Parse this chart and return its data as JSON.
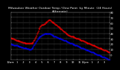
{
  "title": "Milwaukee Weather Outdoor Temp / Dew Point  by Minute  (24 Hours) (Alternate)",
  "bg_color": "#000000",
  "plot_bg_color": "#000000",
  "grid_color": "#666666",
  "temp_color": "#ff0000",
  "dew_color": "#0000ff",
  "temp_values": [
    32,
    31,
    31,
    30,
    30,
    29,
    29,
    28,
    28,
    27,
    27,
    26,
    26,
    25,
    25,
    25,
    24,
    24,
    24,
    23,
    23,
    23,
    23,
    22,
    22,
    22,
    22,
    22,
    21,
    21,
    21,
    21,
    21,
    22,
    22,
    23,
    24,
    26,
    28,
    30,
    33,
    36,
    39,
    42,
    45,
    48,
    50,
    52,
    54,
    55,
    56,
    57,
    57,
    58,
    58,
    59,
    60,
    61,
    62,
    63,
    64,
    65,
    65,
    65,
    64,
    63,
    62,
    61,
    60,
    60,
    59,
    58,
    57,
    56,
    55,
    54,
    53,
    52,
    51,
    50,
    49,
    48,
    47,
    46,
    45,
    44,
    43,
    42,
    41,
    40,
    39,
    38,
    37,
    37,
    36,
    36,
    35,
    35,
    34,
    34,
    34,
    33,
    33,
    32,
    32,
    31,
    31,
    30,
    30,
    29,
    29,
    28,
    28,
    27,
    27,
    26,
    26,
    25,
    25,
    24,
    24,
    23,
    23,
    22,
    22,
    21,
    21,
    20,
    20,
    19,
    19,
    18,
    18,
    17,
    17,
    16,
    16,
    15,
    15,
    14,
    14,
    13,
    13,
    12,
    12,
    11,
    11,
    10,
    10,
    9,
    9,
    8,
    8,
    7,
    7,
    6,
    6,
    5,
    5,
    4
  ],
  "dew_values": [
    20,
    20,
    19,
    19,
    19,
    18,
    18,
    18,
    17,
    17,
    17,
    16,
    16,
    16,
    15,
    15,
    15,
    14,
    14,
    14,
    13,
    13,
    13,
    12,
    12,
    12,
    11,
    11,
    11,
    10,
    10,
    10,
    10,
    11,
    12,
    13,
    15,
    17,
    19,
    21,
    23,
    25,
    27,
    29,
    31,
    32,
    33,
    34,
    35,
    36,
    37,
    37,
    38,
    38,
    39,
    39,
    39,
    40,
    40,
    40,
    40,
    40,
    39,
    39,
    38,
    38,
    37,
    37,
    36,
    35,
    35,
    34,
    34,
    33,
    33,
    32,
    32,
    31,
    31,
    30,
    30,
    29,
    29,
    28,
    28,
    27,
    27,
    26,
    26,
    25,
    25,
    24,
    24,
    23,
    23,
    22,
    22,
    21,
    21,
    20,
    20,
    19,
    19,
    18,
    18,
    17,
    17,
    16,
    16,
    15,
    15,
    14,
    14,
    13,
    13,
    12,
    12,
    11,
    11,
    10,
    10,
    9,
    9,
    8,
    8,
    7,
    7,
    6,
    6,
    5,
    5,
    4,
    4,
    3,
    3,
    2,
    2,
    1,
    1,
    0,
    0,
    -1,
    -1,
    -2,
    -2,
    -3,
    -3,
    -4,
    -4,
    -5,
    -5,
    -6,
    -6,
    -7,
    -7,
    -8,
    -8,
    -9,
    -9,
    -10
  ],
  "ylim": [
    -10,
    80
  ],
  "xlim": [
    0,
    159
  ],
  "yticks": [
    0,
    10,
    20,
    30,
    40,
    50,
    60,
    70,
    80
  ],
  "ytick_labels": [
    "0",
    "10",
    "20",
    "30",
    "40",
    "50",
    "60",
    "70",
    "80"
  ],
  "xtick_positions": [
    0,
    10,
    20,
    30,
    40,
    50,
    60,
    70,
    80,
    90,
    100,
    110,
    120,
    130,
    140,
    150
  ],
  "xtick_labels": [
    "12am",
    "1",
    "2",
    "3",
    "4",
    "5",
    "6",
    "7",
    "8",
    "9",
    "10",
    "11",
    "12pm",
    "1",
    "2",
    "3"
  ],
  "vgrid_positions": [
    10,
    20,
    30,
    40,
    50,
    60,
    70,
    80,
    90,
    100,
    110,
    120,
    130,
    140,
    150
  ],
  "marker_size": 0.8,
  "tick_fontsize": 2.8,
  "title_fontsize": 3.2,
  "right_ytick_labels": [
    "80",
    "70",
    "60",
    "50",
    "40",
    "30",
    "20",
    "10",
    "0"
  ]
}
